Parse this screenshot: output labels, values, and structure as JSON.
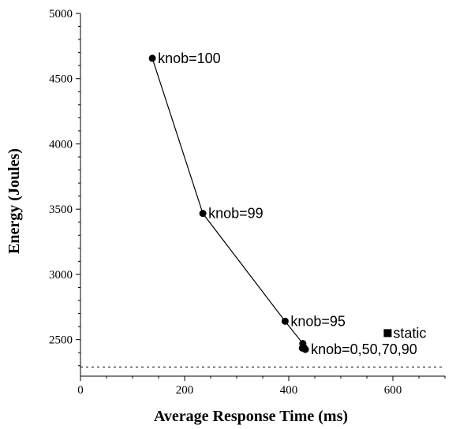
{
  "chart_data": {
    "type": "line",
    "xlabel": "Average Response Time (ms)",
    "ylabel": "Energy (Joules)",
    "xlim": [
      0,
      700
    ],
    "ylim": [
      2220,
      5000
    ],
    "x_ticks": [
      0,
      200,
      400,
      600
    ],
    "y_ticks": [
      2500,
      3000,
      3500,
      4000,
      4500,
      5000
    ],
    "x_minor_step": 50,
    "y_minor_step": 100,
    "grid": false,
    "series": [
      {
        "marker": "circle",
        "line": "solid",
        "x": [
          138,
          235,
          393,
          427,
          429,
          426,
          432
        ],
        "y": [
          4656,
          3467,
          2641,
          2470,
          2440,
          2435,
          2425
        ]
      }
    ],
    "extra_points": [
      {
        "marker": "square",
        "x": 590,
        "y": 2550
      }
    ],
    "reference_lines": [
      {
        "orientation": "horizontal",
        "style": "dotted",
        "y": 2290
      }
    ],
    "annotations": [
      {
        "text": "knob=100",
        "x": 138,
        "y": 4656
      },
      {
        "text": "knob=99",
        "x": 235,
        "y": 3467
      },
      {
        "text": "knob=95",
        "x": 393,
        "y": 2641
      },
      {
        "text": "knob=0,50,70,90",
        "x": 432,
        "y": 2425
      },
      {
        "text": "static",
        "x": 590,
        "y": 2550
      }
    ]
  }
}
